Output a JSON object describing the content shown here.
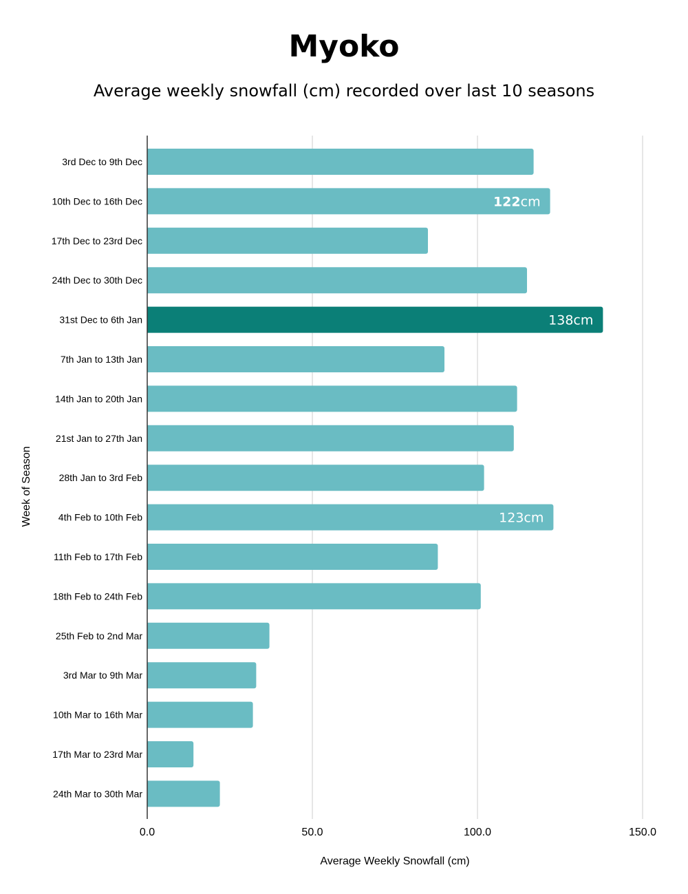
{
  "chart_data": {
    "type": "bar",
    "orientation": "horizontal",
    "title": "Myoko",
    "subtitle": "Average weekly snowfall (cm) recorded over last 10 seasons",
    "xlabel": "Average Weekly Snowfall (cm)",
    "ylabel": "Week of Season",
    "xlim": [
      0,
      150
    ],
    "x_ticks": [
      "0.0",
      "50.0",
      "100.0",
      "150.0"
    ],
    "grid": true,
    "bar_color": "#6abcc3",
    "highlight_color": "#0b7f77",
    "highlight_index": 4,
    "categories": [
      "3rd Dec to 9th Dec",
      "10th Dec to 16th Dec",
      "17th Dec to 23rd Dec",
      "24th Dec to  30th Dec",
      "31st Dec to 6th Jan",
      "7th Jan to 13th Jan",
      "14th Jan to 20th Jan",
      "21st Jan to 27th Jan",
      "28th Jan to 3rd Feb",
      "4th Feb to 10th Feb",
      "11th Feb to 17th Feb",
      "18th Feb to 24th Feb",
      "25th Feb to 2nd Mar",
      "3rd Mar to 9th Mar",
      "10th Mar to 16th Mar",
      "17th Mar to 23rd Mar",
      "24th Mar to 30th Mar"
    ],
    "values": [
      117,
      122,
      85,
      115,
      138,
      90,
      112,
      111,
      102,
      123,
      88,
      101,
      37,
      33,
      32,
      14,
      22
    ],
    "bar_labels": [
      {
        "index": 1,
        "value": "122",
        "unit": "cm",
        "value_bold": true
      },
      {
        "index": 4,
        "value": "138",
        "unit": "cm",
        "value_bold": false
      },
      {
        "index": 9,
        "value": "123",
        "unit": "cm",
        "value_bold": false
      }
    ]
  }
}
